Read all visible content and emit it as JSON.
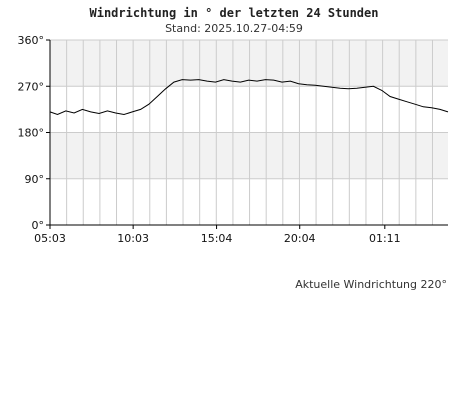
{
  "chart_data": {
    "type": "line",
    "title": "Windrichtung in ° der letzten 24 Stunden",
    "subtitle": "Stand: 2025.10.27-04:59",
    "footer": "Aktuelle Windrichtung 220°",
    "ylim": [
      0,
      360
    ],
    "y_ticks": [
      {
        "value": 0,
        "label": "0°"
      },
      {
        "value": 90,
        "label": "90°"
      },
      {
        "value": 180,
        "label": "180°"
      },
      {
        "value": 270,
        "label": "270°"
      },
      {
        "value": 360,
        "label": "360°"
      }
    ],
    "xlim": [
      "05:03",
      "04:59"
    ],
    "x_ticks": [
      {
        "time": "05:03",
        "label": "05:03"
      },
      {
        "time": "10:03",
        "label": "10:03"
      },
      {
        "time": "15:04",
        "label": "15:04"
      },
      {
        "time": "20:04",
        "label": "20:04"
      },
      {
        "time": "01:11",
        "label": "01:11"
      }
    ],
    "grid": true,
    "colors": {
      "line": "#000000",
      "band": "#f2f2f2",
      "grid": "#cccccc",
      "axis": "#000000"
    },
    "series": [
      {
        "time": [
          "05:03",
          "05:30",
          "06:00",
          "06:30",
          "07:00",
          "07:30",
          "08:00",
          "08:30",
          "09:00",
          "09:30",
          "10:00",
          "10:30",
          "11:00",
          "11:30",
          "12:00",
          "12:30",
          "13:00",
          "13:30",
          "14:00",
          "14:30",
          "15:00",
          "15:30",
          "16:00",
          "16:30",
          "17:00",
          "17:30",
          "18:00",
          "18:30",
          "19:00",
          "19:30",
          "20:00",
          "20:30",
          "21:00",
          "21:30",
          "22:00",
          "22:30",
          "23:00",
          "23:30",
          "00:00",
          "00:30",
          "01:00",
          "01:30",
          "02:00",
          "02:30",
          "03:00",
          "03:30",
          "04:00",
          "04:30",
          "04:59"
        ],
        "values": [
          220,
          215,
          222,
          218,
          225,
          220,
          217,
          222,
          218,
          215,
          220,
          225,
          235,
          250,
          265,
          278,
          283,
          282,
          283,
          280,
          278,
          283,
          280,
          278,
          282,
          280,
          283,
          282,
          278,
          280,
          275,
          273,
          272,
          270,
          268,
          266,
          265,
          266,
          268,
          270,
          262,
          250,
          245,
          240,
          235,
          230,
          228,
          225,
          220
        ]
      }
    ]
  }
}
